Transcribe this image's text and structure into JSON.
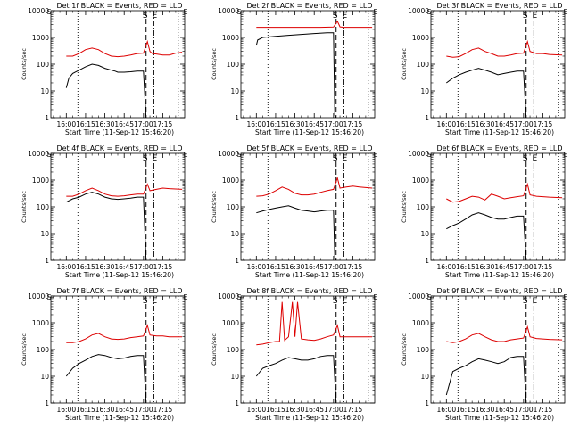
{
  "figure": {
    "background": "#ffffff",
    "event_color": "#000000",
    "lld_color": "#dd0000",
    "title_suffix": " BLACK = Events, RED = LLD",
    "ylabel": "Counts/sec",
    "xlabel": "Start Time (11-Sep-12 15:46:20)",
    "marker_labels": [
      "S",
      "E"
    ],
    "corner_labels": [
      "S",
      "E"
    ]
  },
  "chart_data": [
    {
      "type": "line",
      "title": "Det 1f BLACK = Events, RED = LLD",
      "yscale": "log",
      "ylim": [
        1,
        10000
      ],
      "xticks": [
        "16:00",
        "16:15",
        "16:30",
        "16:45",
        "17:00",
        "17:15"
      ],
      "series": [
        {
          "name": "Events",
          "color": "#000000",
          "x": [
            0,
            2,
            5,
            10,
            15,
            20,
            25,
            30,
            35,
            38,
            40,
            45,
            50,
            55,
            60,
            62
          ],
          "y": [
            13,
            30,
            45,
            60,
            80,
            100,
            90,
            70,
            60,
            55,
            50,
            50,
            52,
            55,
            55,
            1
          ]
        },
        {
          "name": "LLD",
          "color": "#dd0000",
          "x": [
            0,
            5,
            10,
            15,
            20,
            25,
            30,
            35,
            40,
            45,
            50,
            55,
            60,
            63,
            65,
            67,
            70,
            75,
            80,
            85,
            90
          ],
          "y": [
            200,
            200,
            250,
            350,
            400,
            350,
            250,
            200,
            190,
            200,
            220,
            250,
            260,
            700,
            300,
            250,
            240,
            220,
            220,
            260,
            280
          ]
        }
      ],
      "vlines": {
        "dotted": [
          9,
          87
        ],
        "dashed": 62,
        "dashdot": 68
      }
    },
    {
      "type": "line",
      "title": "Det 2f BLACK = Events, RED = LLD",
      "yscale": "log",
      "ylim": [
        1,
        10000
      ],
      "xticks": [
        "16:00",
        "16:15",
        "16:30",
        "16:45",
        "17:00",
        "17:15"
      ],
      "series": [
        {
          "name": "Events",
          "color": "#000000",
          "x": [
            0,
            1,
            5,
            15,
            25,
            35,
            45,
            55,
            60,
            61,
            62
          ],
          "y": [
            500,
            800,
            1000,
            1100,
            1200,
            1300,
            1400,
            1500,
            1500,
            1.2,
            1
          ]
        },
        {
          "name": "LLD",
          "color": "#dd0000",
          "x": [
            0,
            10,
            20,
            30,
            40,
            50,
            60,
            63,
            65,
            68,
            70,
            80,
            90
          ],
          "y": [
            2400,
            2400,
            2400,
            2400,
            2400,
            2400,
            2450,
            4000,
            2500,
            2400,
            2400,
            2400,
            2400
          ]
        }
      ],
      "vlines": {
        "dotted": [
          9,
          87
        ],
        "dashed": 62,
        "dashdot": 68
      }
    },
    {
      "type": "line",
      "title": "Det 3f BLACK = Events, RED = LLD",
      "yscale": "log",
      "ylim": [
        1,
        10000
      ],
      "xticks": [
        "16:00",
        "16:15",
        "16:30",
        "16:45",
        "17:00",
        "17:15"
      ],
      "series": [
        {
          "name": "Events",
          "color": "#000000",
          "x": [
            0,
            5,
            10,
            15,
            20,
            25,
            30,
            35,
            40,
            45,
            50,
            55,
            60,
            62
          ],
          "y": [
            20,
            30,
            40,
            50,
            60,
            70,
            60,
            50,
            40,
            45,
            50,
            55,
            55,
            1
          ]
        },
        {
          "name": "LLD",
          "color": "#dd0000",
          "x": [
            0,
            5,
            10,
            15,
            20,
            25,
            30,
            35,
            40,
            45,
            50,
            55,
            60,
            63,
            65,
            70,
            75,
            80,
            90
          ],
          "y": [
            200,
            180,
            190,
            250,
            350,
            400,
            300,
            250,
            200,
            200,
            220,
            250,
            260,
            700,
            300,
            250,
            250,
            230,
            220
          ]
        }
      ],
      "vlines": {
        "dotted": [
          9,
          87
        ],
        "dashed": 62,
        "dashdot": 68
      }
    },
    {
      "type": "line",
      "title": "Det 4f BLACK = Events, RED = LLD",
      "yscale": "log",
      "ylim": [
        1,
        10000
      ],
      "xticks": [
        "16:00",
        "16:15",
        "16:30",
        "16:45",
        "17:00",
        "17:15"
      ],
      "series": [
        {
          "name": "Events",
          "color": "#000000",
          "x": [
            0,
            5,
            10,
            15,
            20,
            25,
            30,
            35,
            40,
            45,
            50,
            55,
            60,
            62
          ],
          "y": [
            150,
            200,
            230,
            300,
            350,
            300,
            230,
            200,
            190,
            200,
            210,
            230,
            230,
            1
          ]
        },
        {
          "name": "LLD",
          "color": "#dd0000",
          "x": [
            0,
            5,
            10,
            15,
            20,
            25,
            30,
            35,
            40,
            45,
            50,
            55,
            60,
            63,
            65,
            70,
            75,
            80,
            90
          ],
          "y": [
            250,
            250,
            300,
            400,
            500,
            400,
            300,
            260,
            250,
            260,
            280,
            300,
            300,
            700,
            400,
            450,
            500,
            480,
            450
          ]
        }
      ],
      "vlines": {
        "dotted": [
          9,
          87
        ],
        "dashed": 62,
        "dashdot": 68
      }
    },
    {
      "type": "line",
      "title": "Det 5f BLACK = Events, RED = LLD",
      "yscale": "log",
      "ylim": [
        1,
        10000
      ],
      "xticks": [
        "16:00",
        "16:15",
        "16:30",
        "16:45",
        "17:00",
        "17:15"
      ],
      "series": [
        {
          "name": "Events",
          "color": "#000000",
          "x": [
            0,
            5,
            10,
            15,
            20,
            25,
            30,
            35,
            40,
            45,
            50,
            55,
            60,
            61,
            62
          ],
          "y": [
            60,
            70,
            80,
            90,
            100,
            110,
            90,
            75,
            70,
            65,
            70,
            75,
            75,
            1.2,
            1
          ]
        },
        {
          "name": "LLD",
          "color": "#dd0000",
          "x": [
            0,
            5,
            10,
            15,
            20,
            25,
            30,
            35,
            40,
            45,
            50,
            55,
            60,
            63,
            65,
            70,
            75,
            80,
            90
          ],
          "y": [
            250,
            260,
            300,
            400,
            550,
            450,
            320,
            280,
            280,
            300,
            350,
            400,
            450,
            1200,
            500,
            550,
            600,
            550,
            500
          ]
        }
      ],
      "vlines": {
        "dotted": [
          9,
          87
        ],
        "dashed": 62,
        "dashdot": 68
      }
    },
    {
      "type": "line",
      "title": "Det 6f BLACK = Events, RED = LLD",
      "yscale": "log",
      "ylim": [
        1,
        10000
      ],
      "xticks": [
        "16:00",
        "16:15",
        "16:30",
        "16:45",
        "17:00",
        "17:15"
      ],
      "series": [
        {
          "name": "Events",
          "color": "#000000",
          "x": [
            0,
            5,
            10,
            15,
            20,
            25,
            30,
            35,
            40,
            45,
            50,
            55,
            60,
            62
          ],
          "y": [
            15,
            20,
            25,
            35,
            50,
            60,
            50,
            40,
            35,
            35,
            40,
            45,
            45,
            1
          ]
        },
        {
          "name": "LLD",
          "color": "#dd0000",
          "x": [
            0,
            5,
            10,
            15,
            20,
            25,
            30,
            35,
            40,
            45,
            50,
            55,
            60,
            63,
            65,
            70,
            75,
            80,
            90
          ],
          "y": [
            200,
            150,
            160,
            200,
            250,
            230,
            180,
            300,
            250,
            200,
            220,
            240,
            260,
            700,
            280,
            250,
            240,
            230,
            220
          ]
        }
      ],
      "vlines": {
        "dotted": [
          9,
          87
        ],
        "dashed": 62,
        "dashdot": 68
      }
    },
    {
      "type": "line",
      "title": "Det 7f BLACK = Events, RED = LLD",
      "yscale": "log",
      "ylim": [
        1,
        10000
      ],
      "xticks": [
        "16:00",
        "16:15",
        "16:30",
        "16:45",
        "17:00",
        "17:15"
      ],
      "series": [
        {
          "name": "Events",
          "color": "#000000",
          "x": [
            0,
            5,
            10,
            15,
            20,
            25,
            30,
            35,
            40,
            45,
            50,
            55,
            60,
            62
          ],
          "y": [
            10,
            20,
            30,
            40,
            55,
            65,
            60,
            50,
            45,
            48,
            55,
            60,
            60,
            1
          ]
        },
        {
          "name": "LLD",
          "color": "#dd0000",
          "x": [
            0,
            5,
            10,
            15,
            20,
            25,
            30,
            35,
            40,
            45,
            50,
            55,
            60,
            63,
            65,
            70,
            75,
            80,
            90
          ],
          "y": [
            180,
            180,
            200,
            250,
            350,
            400,
            300,
            250,
            240,
            250,
            280,
            300,
            320,
            800,
            350,
            320,
            320,
            300,
            300
          ]
        }
      ],
      "vlines": {
        "dotted": [
          9,
          87
        ],
        "dashed": 62,
        "dashdot": 68
      }
    },
    {
      "type": "line",
      "title": "Det 8f BLACK = Events, RED = LLD",
      "yscale": "log",
      "ylim": [
        1,
        10000
      ],
      "xticks": [
        "16:00",
        "16:15",
        "16:30",
        "16:45",
        "17:00",
        "17:15"
      ],
      "series": [
        {
          "name": "Events",
          "color": "#000000",
          "x": [
            0,
            5,
            10,
            15,
            20,
            25,
            30,
            35,
            40,
            45,
            50,
            55,
            60,
            62
          ],
          "y": [
            10,
            20,
            25,
            30,
            40,
            50,
            45,
            40,
            40,
            45,
            55,
            60,
            60,
            1
          ]
        },
        {
          "name": "LLD",
          "color": "#dd0000",
          "x": [
            0,
            5,
            10,
            15,
            18,
            20,
            22,
            25,
            28,
            30,
            32,
            35,
            40,
            45,
            50,
            55,
            60,
            63,
            65,
            70,
            80,
            90
          ],
          "y": [
            150,
            160,
            180,
            200,
            200,
            6000,
            220,
            300,
            6000,
            300,
            6000,
            250,
            230,
            220,
            250,
            300,
            350,
            800,
            300,
            300,
            300,
            300
          ]
        }
      ],
      "vlines": {
        "dotted": [
          9,
          87
        ],
        "dashed": 62,
        "dashdot": 68
      }
    },
    {
      "type": "line",
      "title": "Det 9f BLACK = Events, RED = LLD",
      "yscale": "log",
      "ylim": [
        1,
        10000
      ],
      "xticks": [
        "16:00",
        "16:15",
        "16:30",
        "16:45",
        "17:00",
        "17:15"
      ],
      "series": [
        {
          "name": "Events",
          "color": "#000000",
          "x": [
            0,
            5,
            10,
            15,
            20,
            25,
            30,
            35,
            40,
            45,
            50,
            55,
            60,
            62
          ],
          "y": [
            2,
            15,
            20,
            25,
            35,
            45,
            40,
            35,
            30,
            35,
            50,
            55,
            55,
            1
          ]
        },
        {
          "name": "LLD",
          "color": "#dd0000",
          "x": [
            0,
            5,
            10,
            15,
            20,
            25,
            30,
            35,
            40,
            45,
            50,
            55,
            60,
            63,
            65,
            70,
            75,
            80,
            90
          ],
          "y": [
            200,
            180,
            200,
            250,
            350,
            400,
            300,
            230,
            200,
            200,
            230,
            250,
            270,
            700,
            300,
            260,
            250,
            240,
            230
          ]
        }
      ],
      "vlines": {
        "dotted": [
          9,
          87
        ],
        "dashed": 62,
        "dashdot": 68
      }
    }
  ]
}
